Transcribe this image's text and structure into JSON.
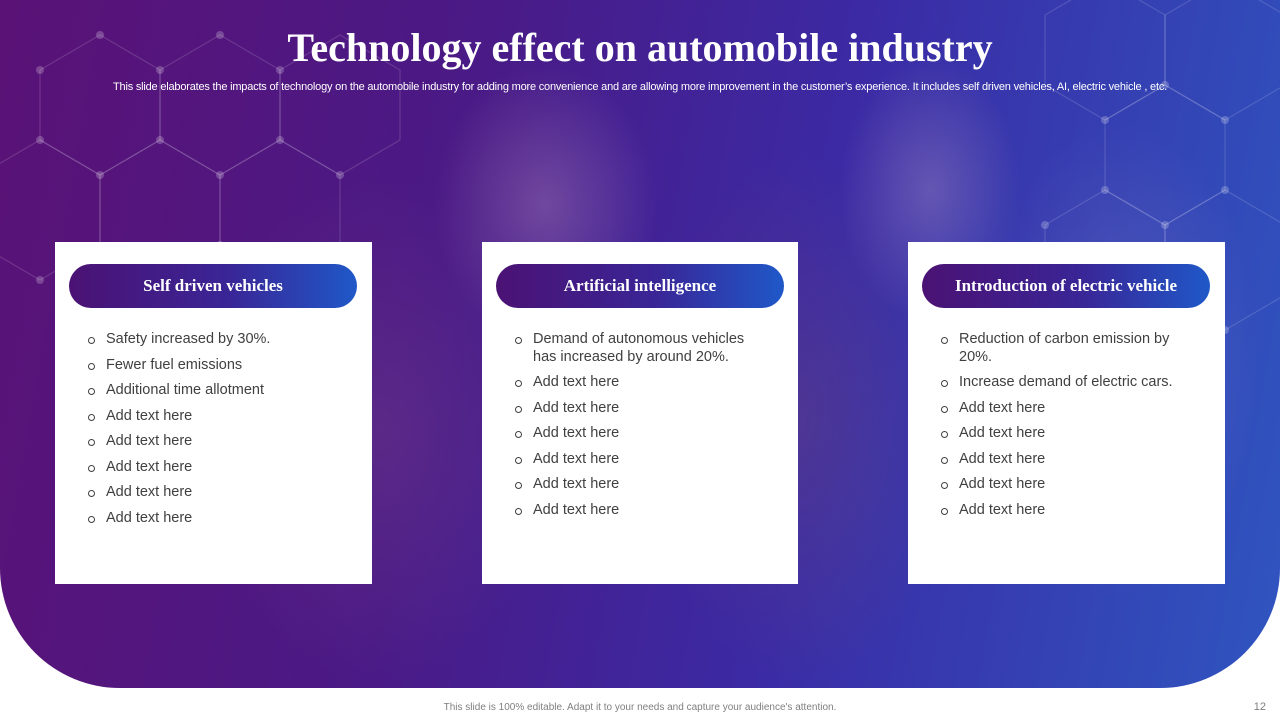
{
  "slide": {
    "title": "Technology effect on automobile industry",
    "subtitle": "This slide elaborates the impacts of technology on the automobile industry for adding more convenience and are allowing more improvement in the customer’s experience. It includes self driven vehicles, AI,  electric vehicle ,  etc.",
    "footer_note": "This slide is 100% editable. Adapt it to your needs and capture your audience's attention.",
    "page_number": "12"
  },
  "cards": [
    {
      "heading": "Self driven vehicles",
      "bullets": [
        "Safety increased by 30%.",
        "Fewer fuel emissions",
        "Additional  time allotment",
        "Add text here",
        "Add text here",
        "Add text here",
        "Add text here",
        "Add text here"
      ]
    },
    {
      "heading": "Artificial intelligence",
      "bullets": [
        "Demand of autonomous vehicles has increased by around 20%.",
        "Add text here",
        "Add text here",
        "Add text here",
        "Add text here",
        "Add text here",
        "Add text here"
      ]
    },
    {
      "heading": "Introduction of electric vehicle",
      "bullets": [
        "Reduction of carbon emission by 20%.",
        "Increase demand of electric cars.",
        "Add text here",
        "Add text here",
        "Add text here",
        "Add text here",
        "Add text here"
      ]
    }
  ],
  "colors": {
    "gradient_start": "#5a1276",
    "gradient_end": "#2f55c0",
    "card_background": "#ffffff",
    "bullet_text": "#404040",
    "footer_text": "#7f7f7f"
  }
}
